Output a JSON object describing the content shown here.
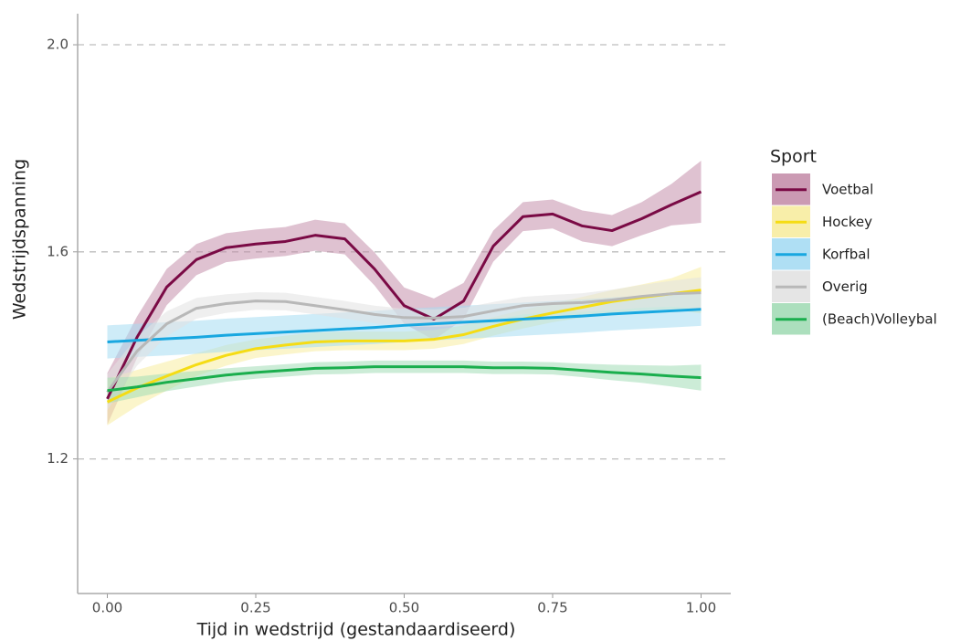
{
  "chart_data": {
    "type": "line",
    "x_label": "Tijd in wedstrijd (gestandaardiseerd)",
    "y_label": "Wedstrijdspanning",
    "legend_title": "Sport",
    "legend": "right",
    "grid": true,
    "xlim": [
      -0.05,
      1.05
    ],
    "ylim": [
      0.94,
      2.06
    ],
    "xticks": [
      {
        "value": 0,
        "label": "0.00"
      },
      {
        "value": 0.25,
        "label": "0.25"
      },
      {
        "value": 0.5,
        "label": "0.50"
      },
      {
        "value": 0.75,
        "label": "0.75"
      },
      {
        "value": 1,
        "label": "1.00"
      }
    ],
    "yticks": [
      1.2,
      1.6,
      {
        "value": 2,
        "label": "2.0"
      }
    ],
    "x": [
      0,
      0.05,
      0.1,
      0.15,
      0.2,
      0.25,
      0.3,
      0.35,
      0.4,
      0.45,
      0.5,
      0.55,
      0.6,
      0.65,
      0.7,
      0.75,
      0.8,
      0.85,
      0.9,
      0.95,
      1
    ],
    "series": [
      {
        "name": "Voetbal",
        "color": "#7a0a45",
        "band_color": "#c58fab",
        "values": [
          1.316,
          1.435,
          1.532,
          1.585,
          1.608,
          1.615,
          1.62,
          1.632,
          1.625,
          1.567,
          1.496,
          1.47,
          1.505,
          1.611,
          1.668,
          1.673,
          1.65,
          1.641,
          1.664,
          1.691,
          1.716
        ],
        "ci": [
          0.05,
          0.04,
          0.035,
          0.03,
          0.028,
          0.028,
          0.028,
          0.03,
          0.03,
          0.032,
          0.035,
          0.04,
          0.035,
          0.03,
          0.028,
          0.028,
          0.03,
          0.03,
          0.032,
          0.04,
          0.06
        ]
      },
      {
        "name": "Hockey",
        "color": "#f5dc14",
        "band_color": "#f7eca0",
        "values": [
          1.31,
          1.337,
          1.36,
          1.382,
          1.4,
          1.413,
          1.42,
          1.426,
          1.428,
          1.428,
          1.428,
          1.431,
          1.44,
          1.456,
          1.47,
          1.482,
          1.493,
          1.504,
          1.512,
          1.519,
          1.526
        ],
        "ci": [
          0.045,
          0.035,
          0.028,
          0.022,
          0.02,
          0.018,
          0.018,
          0.018,
          0.018,
          0.018,
          0.018,
          0.018,
          0.018,
          0.018,
          0.018,
          0.018,
          0.02,
          0.022,
          0.025,
          0.03,
          0.045
        ]
      },
      {
        "name": "Korfbal",
        "color": "#18a7e0",
        "band_color": "#a6dcf3",
        "values": [
          1.426,
          1.429,
          1.432,
          1.435,
          1.439,
          1.442,
          1.445,
          1.448,
          1.451,
          1.454,
          1.458,
          1.461,
          1.464,
          1.467,
          1.47,
          1.473,
          1.476,
          1.48,
          1.483,
          1.486,
          1.489
        ],
        "ci": [
          0.032,
          0.032,
          0.032,
          0.032,
          0.032,
          0.032,
          0.032,
          0.032,
          0.032,
          0.032,
          0.032,
          0.032,
          0.032,
          0.032,
          0.032,
          0.032,
          0.032,
          0.032,
          0.032,
          0.032,
          0.032
        ]
      },
      {
        "name": "Overig",
        "color": "#b8b8b8",
        "band_color": "#e2e2e2",
        "values": [
          1.329,
          1.408,
          1.461,
          1.491,
          1.5,
          1.505,
          1.504,
          1.496,
          1.488,
          1.479,
          1.473,
          1.472,
          1.475,
          1.486,
          1.496,
          1.5,
          1.502,
          1.507,
          1.514,
          1.519,
          1.521
        ],
        "ci": [
          0.035,
          0.028,
          0.024,
          0.02,
          0.018,
          0.017,
          0.017,
          0.017,
          0.017,
          0.017,
          0.017,
          0.017,
          0.017,
          0.017,
          0.017,
          0.017,
          0.018,
          0.02,
          0.022,
          0.025,
          0.03
        ]
      },
      {
        "name": "(Beach)Volleybal",
        "color": "#1aae4d",
        "band_color": "#a3dcb6",
        "values": [
          1.332,
          1.339,
          1.348,
          1.355,
          1.362,
          1.367,
          1.371,
          1.375,
          1.376,
          1.378,
          1.378,
          1.378,
          1.378,
          1.376,
          1.376,
          1.375,
          1.371,
          1.367,
          1.364,
          1.36,
          1.357
        ],
        "ci": [
          0.025,
          0.02,
          0.017,
          0.015,
          0.013,
          0.012,
          0.012,
          0.012,
          0.012,
          0.012,
          0.012,
          0.012,
          0.012,
          0.012,
          0.012,
          0.012,
          0.013,
          0.015,
          0.017,
          0.02,
          0.025
        ]
      }
    ]
  }
}
